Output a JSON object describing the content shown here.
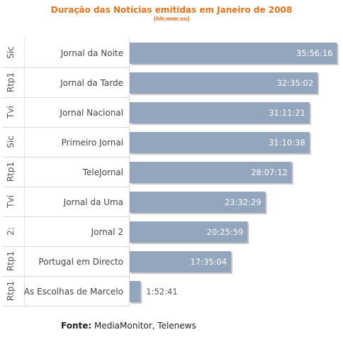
{
  "chart_data": {
    "type": "bar",
    "orientation": "horizontal",
    "title": "Duração das Notícias emitidas em Janeiro de 2008",
    "subtitle": "(hh:mm:ss)",
    "categories": [
      {
        "channel": "Sic",
        "program": "Jornal da Noite"
      },
      {
        "channel": "Rtp1",
        "program": "Jornal da Tarde"
      },
      {
        "channel": "Tvi",
        "program": "Jornal Nacional"
      },
      {
        "channel": "Sic",
        "program": "Primeiro Jornal"
      },
      {
        "channel": "Rtp1",
        "program": "TeleJornal"
      },
      {
        "channel": "Tvi",
        "program": "Jornal da Uma"
      },
      {
        "channel": "2:",
        "program": "Jornal 2"
      },
      {
        "channel": "Rtp1",
        "program": "Portugal em Directo"
      },
      {
        "channel": "Rtp1",
        "program": "As Escolhas de Marcelo"
      }
    ],
    "value_labels": [
      "35:56:16",
      "32:35:02",
      "31:11:21",
      "31:10:38",
      "28:07:12",
      "23:32:29",
      "20:25:59",
      "17:35:04",
      "1:52:41"
    ],
    "values_hours": [
      35.938,
      32.584,
      31.189,
      31.177,
      28.12,
      23.541,
      20.433,
      17.584,
      1.878
    ],
    "xlim": [
      0,
      36
    ],
    "bar_color": "#94a6bd",
    "label_color_inside": "#ffffff",
    "label_color_outside": "#555555"
  },
  "footer": {
    "label": "Fonte:",
    "text": " MediaMonitor, Telenews"
  }
}
